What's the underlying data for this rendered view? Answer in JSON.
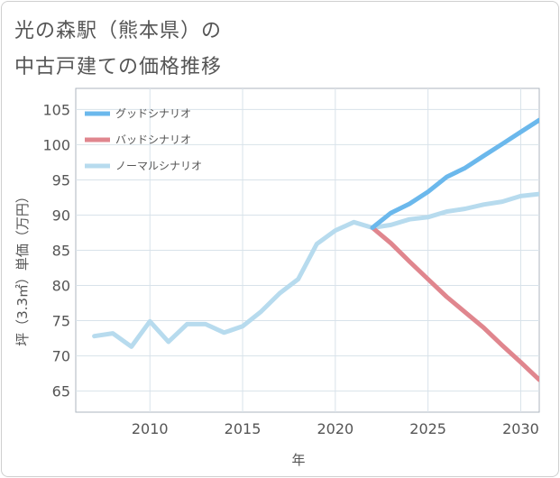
{
  "title": {
    "line1": "光の森駅（熊本県）の",
    "line2": "中古戸建ての価格推移"
  },
  "chart_data": {
    "type": "line",
    "title": "光の森駅（熊本県）の中古戸建ての価格推移",
    "xlabel": "年",
    "ylabel": "坪（3.3㎡）単価（万円）",
    "xlim": [
      2006,
      2031
    ],
    "ylim": [
      62,
      108
    ],
    "xticks": [
      2010,
      2015,
      2020,
      2025,
      2030
    ],
    "yticks": [
      65,
      70,
      75,
      80,
      85,
      90,
      95,
      100,
      105
    ],
    "grid": true,
    "legend_position": "top-left",
    "series": [
      {
        "name": "グッドシナリオ",
        "color": "#6bb8ec",
        "x": [
          2022,
          2023,
          2024,
          2025,
          2026,
          2027,
          2028,
          2029,
          2030,
          2031
        ],
        "y": [
          88.2,
          90.3,
          91.6,
          93.3,
          95.4,
          96.7,
          98.4,
          100.1,
          101.8,
          103.5
        ]
      },
      {
        "name": "バッドシナリオ",
        "color": "#e0868e",
        "x": [
          2022,
          2023,
          2024,
          2025,
          2026,
          2027,
          2028,
          2029,
          2030,
          2031
        ],
        "y": [
          88.2,
          86.0,
          83.4,
          80.9,
          78.4,
          76.2,
          74.0,
          71.5,
          69.1,
          66.6
        ]
      },
      {
        "name": "ノーマルシナリオ",
        "color": "#b7dbee",
        "x": [
          2007,
          2008,
          2009,
          2010,
          2011,
          2012,
          2013,
          2014,
          2015,
          2016,
          2017,
          2018,
          2019,
          2020,
          2021,
          2022,
          2023,
          2024,
          2025,
          2026,
          2027,
          2028,
          2029,
          2030,
          2031
        ],
        "y": [
          72.8,
          73.2,
          71.3,
          74.9,
          72.0,
          74.5,
          74.5,
          73.3,
          74.2,
          76.3,
          78.9,
          80.9,
          85.9,
          87.8,
          89.0,
          88.2,
          88.6,
          89.4,
          89.7,
          90.5,
          90.9,
          91.5,
          91.9,
          92.7,
          93.0
        ]
      }
    ]
  }
}
